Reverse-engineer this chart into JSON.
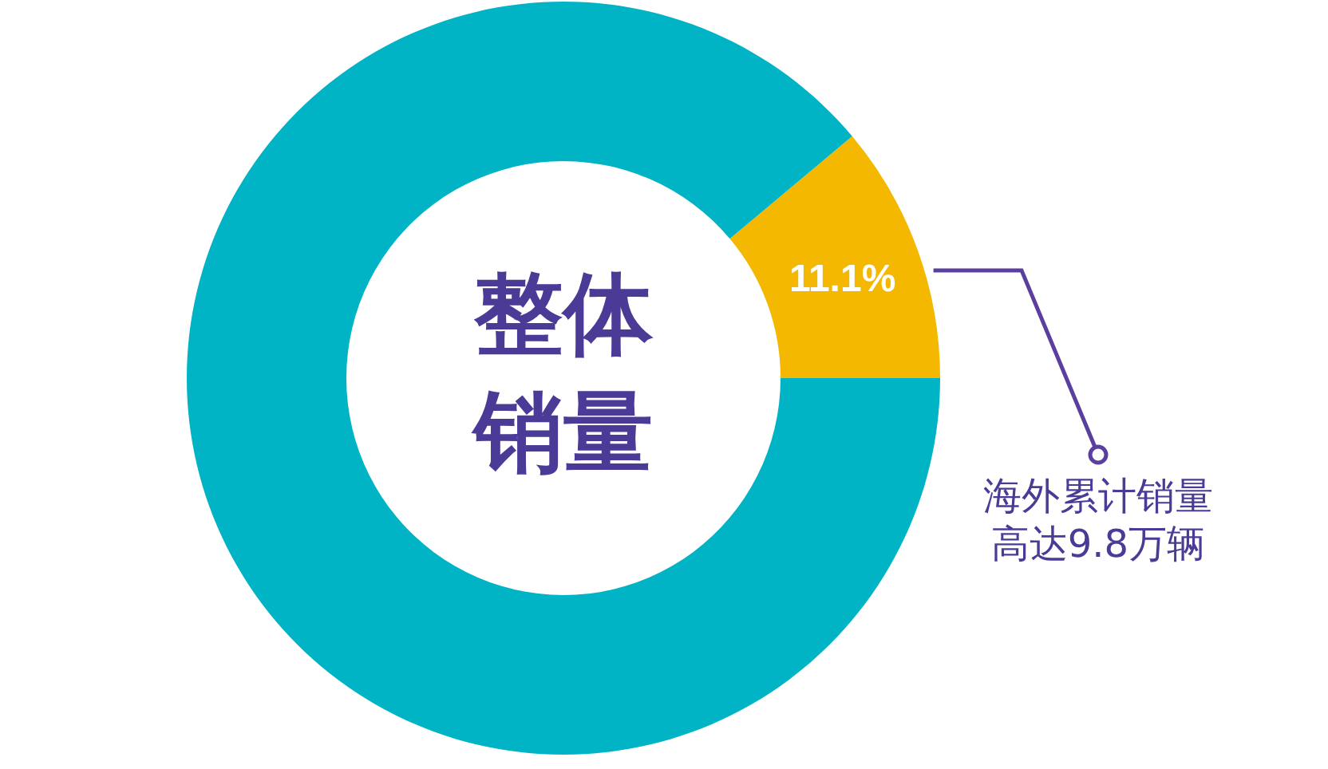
{
  "chart_data": {
    "type": "donut",
    "categories": [
      null,
      null
    ],
    "values": [
      11.1,
      88.9
    ],
    "colors": [
      "#f5b800",
      "#00b4c6"
    ],
    "value_labels": [
      "11.1%",
      null
    ],
    "annotations": [
      "整体",
      "销量",
      "海外累计销量",
      "高达9.8万辆"
    ]
  }
}
